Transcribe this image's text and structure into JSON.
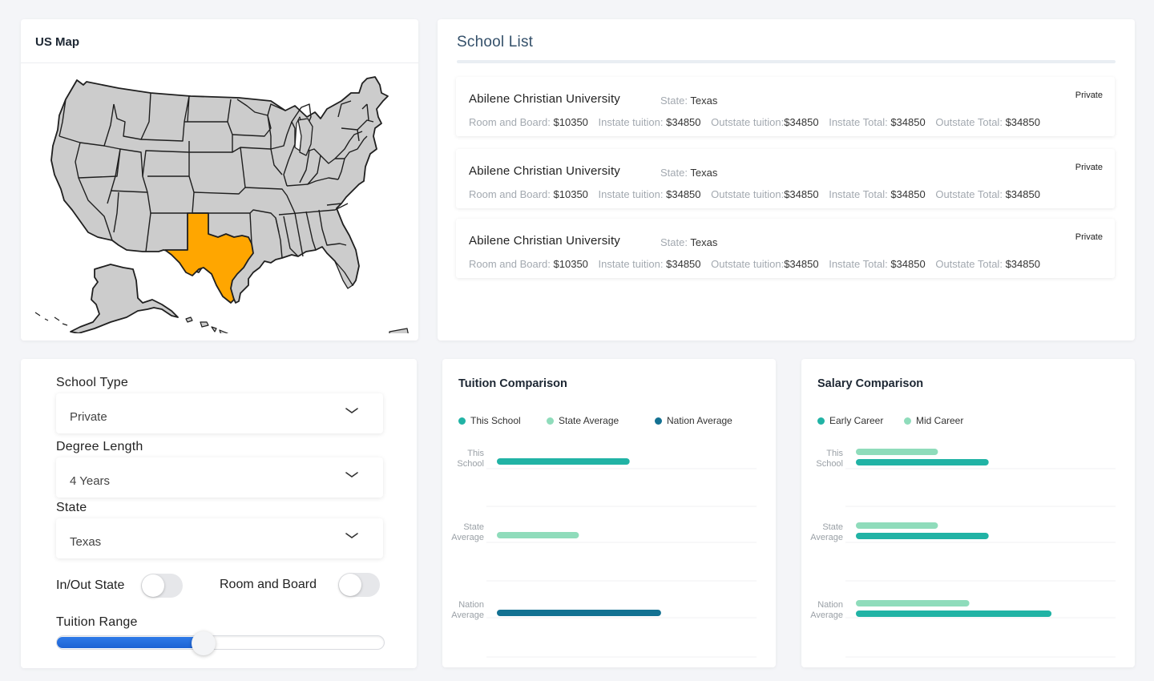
{
  "map": {
    "title": "US Map",
    "highlight_state": "Texas",
    "highlight_color": "#ffa600",
    "base_color": "#cccccc"
  },
  "school_list": {
    "title": "School List",
    "stat_labels": {
      "room_board": "Room and Board:",
      "instate": "Instate tuition:",
      "outstate": "Outstate tuition:",
      "instate_total": "Instate Total:",
      "outstate_total": "Outstate Total:"
    },
    "state_label": "State:",
    "items": [
      {
        "name": "Abilene Christian University",
        "state": "Texas",
        "type": "Private",
        "room_board": "$10350",
        "instate": "$34850",
        "outstate": "$34850",
        "instate_total": "$34850",
        "outstate_total": "$34850"
      },
      {
        "name": "Abilene Christian University",
        "state": "Texas",
        "type": "Private",
        "room_board": "$10350",
        "instate": "$34850",
        "outstate": "$34850",
        "instate_total": "$34850",
        "outstate_total": "$34850"
      },
      {
        "name": "Abilene Christian University",
        "state": "Texas",
        "type": "Private",
        "room_board": "$10350",
        "instate": "$34850",
        "outstate": "$34850",
        "instate_total": "$34850",
        "outstate_total": "$34850"
      }
    ]
  },
  "filters": {
    "school_type": {
      "label": "School Type",
      "value": "Private"
    },
    "degree_length": {
      "label": "Degree Length",
      "value": "4 Years"
    },
    "state": {
      "label": "State",
      "value": "Texas"
    },
    "in_out_state": {
      "label": "In/Out State",
      "on": false
    },
    "room_and_board": {
      "label": "Room and Board",
      "on": false
    },
    "tuition_range": {
      "label": "Tuition Range",
      "fraction": 0.45
    }
  },
  "chart_data": [
    {
      "type": "bar",
      "orientation": "horizontal",
      "title": "Tuition Comparison",
      "categories": [
        "This School",
        "State Average",
        "Nation Average"
      ],
      "series": [
        {
          "name": "This School",
          "color": "#21b3a5",
          "values": [
            0.55,
            null,
            null
          ]
        },
        {
          "name": "State Average",
          "color": "#8fdcbb",
          "values": [
            null,
            0.34,
            null
          ]
        },
        {
          "name": "Nation Average",
          "color": "#137192",
          "values": [
            null,
            null,
            0.68
          ]
        }
      ],
      "xlim": [
        0,
        1
      ]
    },
    {
      "type": "bar",
      "orientation": "horizontal",
      "title": "Salary Comparison",
      "categories": [
        "This School",
        "State Average",
        "Nation Average"
      ],
      "series": [
        {
          "name": "Early Career",
          "color": "#21b3a5",
          "values": [
            0.55,
            0.55,
            0.81
          ]
        },
        {
          "name": "Mid Career",
          "color": "#8fdcbb",
          "values": [
            0.34,
            0.34,
            0.47
          ]
        }
      ],
      "xlim": [
        0,
        1
      ]
    }
  ]
}
